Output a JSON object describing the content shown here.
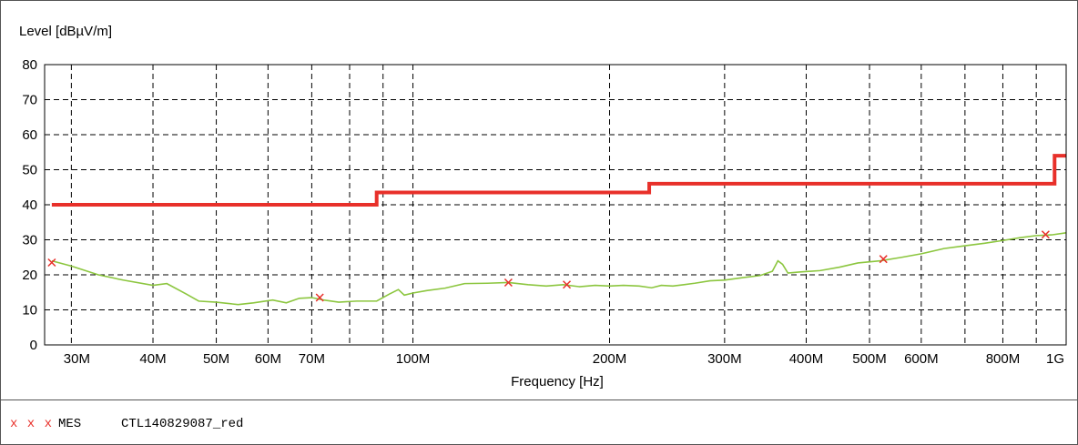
{
  "chart_data": {
    "type": "line",
    "ylabel": "Level [dBµV/m]",
    "xlabel": "Frequency [Hz]",
    "ylim": [
      0,
      80
    ],
    "xlim_mhz": [
      30,
      1000
    ],
    "x_scale": "log",
    "grid": true,
    "y_ticks": [
      0,
      10,
      20,
      30,
      40,
      50,
      60,
      70,
      80
    ],
    "x_ticks": [
      {
        "value": 30,
        "label": "30M"
      },
      {
        "value": 40,
        "label": "40M"
      },
      {
        "value": 50,
        "label": "50M"
      },
      {
        "value": 60,
        "label": "60M"
      },
      {
        "value": 70,
        "label": "70M"
      },
      {
        "value": 100,
        "label": "100M"
      },
      {
        "value": 200,
        "label": "200M"
      },
      {
        "value": 300,
        "label": "300M"
      },
      {
        "value": 400,
        "label": "400M"
      },
      {
        "value": 500,
        "label": "500M"
      },
      {
        "value": 600,
        "label": "600M"
      },
      {
        "value": 800,
        "label": "800M"
      },
      {
        "value": 1000,
        "label": "1G"
      }
    ],
    "extra_grid_x": [
      80,
      90,
      700,
      900
    ],
    "limit_line": {
      "color": "#e8302a",
      "points": [
        [
          28,
          40
        ],
        [
          88,
          40
        ],
        [
          88,
          43.5
        ],
        [
          230,
          43.5
        ],
        [
          230,
          46
        ],
        [
          960,
          46
        ],
        [
          960,
          54
        ],
        [
          1000,
          54
        ]
      ]
    },
    "trace": {
      "color": "#8cc63f",
      "points": [
        [
          28,
          24
        ],
        [
          30,
          22.5
        ],
        [
          33,
          20
        ],
        [
          36,
          18.5
        ],
        [
          40,
          17
        ],
        [
          42,
          17.5
        ],
        [
          45,
          14.5
        ],
        [
          47,
          12.5
        ],
        [
          50,
          12.2
        ],
        [
          54,
          11.5
        ],
        [
          57,
          12
        ],
        [
          61,
          12.8
        ],
        [
          64,
          12
        ],
        [
          67,
          13.3
        ],
        [
          70,
          13.5
        ],
        [
          73,
          12.8
        ],
        [
          77,
          12.2
        ],
        [
          82,
          12.5
        ],
        [
          88,
          12.5
        ],
        [
          92,
          14.5
        ],
        [
          95,
          15.8
        ],
        [
          97,
          14.2
        ],
        [
          100,
          14.8
        ],
        [
          105,
          15.5
        ],
        [
          112,
          16.2
        ],
        [
          120,
          17.5
        ],
        [
          130,
          17.6
        ],
        [
          140,
          17.8
        ],
        [
          150,
          17.2
        ],
        [
          160,
          16.8
        ],
        [
          170,
          17.2
        ],
        [
          180,
          16.6
        ],
        [
          190,
          17
        ],
        [
          200,
          16.8
        ],
        [
          210,
          17
        ],
        [
          222,
          16.8
        ],
        [
          232,
          16.3
        ],
        [
          240,
          17
        ],
        [
          250,
          16.8
        ],
        [
          260,
          17.2
        ],
        [
          270,
          17.6
        ],
        [
          285,
          18.3
        ],
        [
          300,
          18.5
        ],
        [
          320,
          19.2
        ],
        [
          340,
          19.8
        ],
        [
          355,
          21
        ],
        [
          362,
          24
        ],
        [
          368,
          23
        ],
        [
          375,
          20.5
        ],
        [
          390,
          20.8
        ],
        [
          420,
          21.2
        ],
        [
          450,
          22.2
        ],
        [
          480,
          23.4
        ],
        [
          520,
          24
        ],
        [
          560,
          25
        ],
        [
          600,
          26
        ],
        [
          650,
          27.5
        ],
        [
          700,
          28.3
        ],
        [
          750,
          29
        ],
        [
          800,
          29.8
        ],
        [
          850,
          30.6
        ],
        [
          900,
          31.2
        ],
        [
          950,
          31.4
        ],
        [
          1000,
          32
        ]
      ]
    },
    "markers": {
      "color": "#e8302a",
      "points": [
        [
          28,
          23.5
        ],
        [
          72,
          13.5
        ],
        [
          140,
          17.8
        ],
        [
          172,
          17.2
        ],
        [
          525,
          24.5
        ],
        [
          930,
          31.5
        ]
      ]
    }
  },
  "legend": {
    "markers": "x x x",
    "code": "MES",
    "name": "CTL140829087_red"
  }
}
